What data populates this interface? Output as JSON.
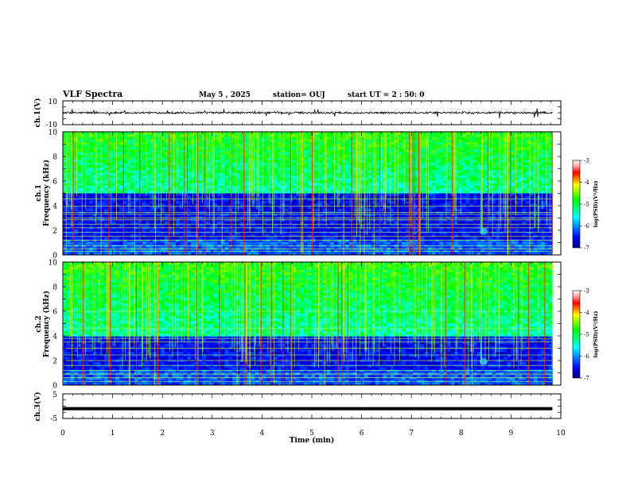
{
  "header": {
    "title": "VLF Spectra",
    "date": "May 5 , 2025",
    "station": "station= OUJ",
    "start_ut": "start UT = 2 : 50: 0"
  },
  "chart_data": [
    {
      "id": "ch1-waveform",
      "type": "line",
      "ylabel": "ch.1(V)",
      "ylim": [
        -10,
        10
      ],
      "yticks": [
        "10",
        "-10"
      ],
      "baseline": 0,
      "duration_min": 9.83,
      "color": "#000000"
    },
    {
      "id": "ch1-spectrogram",
      "type": "heatmap",
      "ylabel": "ch.1 Frequency (kHz)",
      "ylim": [
        0,
        10
      ],
      "yticks": [
        "0",
        "2",
        "4",
        "6",
        "8",
        "10"
      ],
      "colorbar": {
        "min": -7,
        "max": -3,
        "ticks": [
          "-3",
          "-4",
          "-5",
          "-6",
          "-7"
        ],
        "label": "log(PSD)(V²/Hz)"
      },
      "quiet_band_khz": [
        0,
        5.0
      ],
      "band_lines_khz": [
        0.3,
        0.5,
        0.75,
        1.2,
        1.5,
        1.85,
        2.2,
        2.5,
        2.85,
        3.0,
        3.3,
        3.45,
        3.95,
        4.55
      ],
      "feature_time_min": 8.45
    },
    {
      "id": "ch2-spectrogram",
      "type": "heatmap",
      "ylabel": "ch.2 Frequency (kHz)",
      "ylim": [
        0,
        10
      ],
      "yticks": [
        "0",
        "2",
        "4",
        "6",
        "8",
        "10"
      ],
      "colorbar": {
        "min": -7,
        "max": -3,
        "ticks": [
          "-3",
          "-4",
          "-5",
          "-6",
          "-7"
        ],
        "label": "log(PSD)(V²/Hz)"
      },
      "quiet_band_khz": [
        0,
        4.0
      ],
      "band_lines_khz": [
        0.3,
        0.6,
        0.9,
        1.2,
        1.6,
        2.0,
        2.45,
        3.0,
        3.5,
        3.8,
        4.6,
        6.0
      ],
      "feature_time_min": 8.45
    },
    {
      "id": "ch3-waveform",
      "type": "line",
      "ylabel": "ch.3(V)",
      "ylim": [
        -5,
        5
      ],
      "yticks": [
        "5",
        "-5"
      ],
      "baseline": -1,
      "duration_min": 9.83,
      "color": "#000000"
    }
  ],
  "time_axis": {
    "xlabel": "Time (min)",
    "xlim": [
      0,
      10
    ],
    "ticks": [
      "0",
      "1",
      "2",
      "3",
      "4",
      "5",
      "6",
      "7",
      "8",
      "9",
      "10"
    ]
  }
}
